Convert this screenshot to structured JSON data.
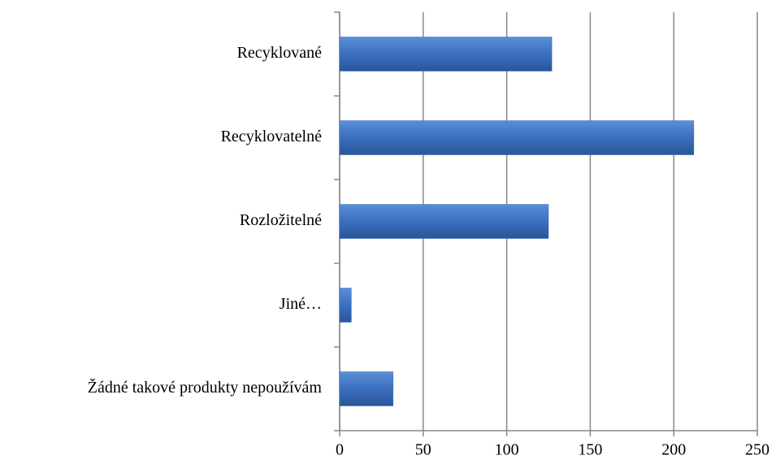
{
  "chart_data": {
    "type": "barh",
    "categories": [
      "Recyklované",
      "Recyklovatelné",
      "Rozložitelné",
      "Jiné…",
      "Žádné takové produkty nepoužívám"
    ],
    "values": [
      127,
      212,
      125,
      7,
      32
    ],
    "color": "#3a6fbf",
    "xlim": [
      0,
      250
    ],
    "xticks": [
      0,
      50,
      100,
      150,
      200,
      250
    ],
    "grid": true
  }
}
